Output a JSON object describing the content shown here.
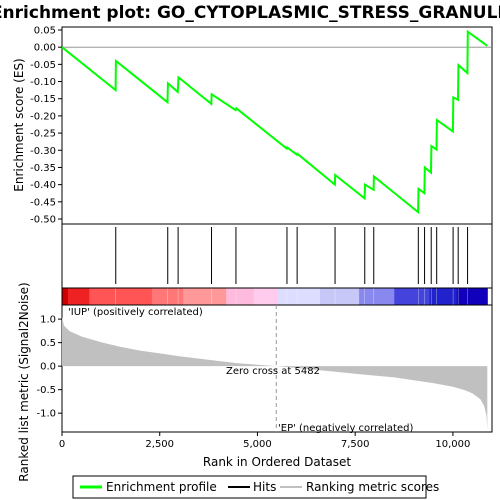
{
  "chart_data": {
    "type": "line",
    "title": "Enrichment plot: GO_CYTOPLASMIC_STRESS_GRANULE",
    "es_ylabel": "Enrichment score (ES)",
    "es_ylim": [
      -0.5,
      0.05
    ],
    "es_yticks": [
      0.05,
      0.0,
      -0.05,
      -0.1,
      -0.15,
      -0.2,
      -0.25,
      -0.3,
      -0.35,
      -0.4,
      -0.45,
      -0.5
    ],
    "es_ytick_labels": [
      "0.05",
      "0.00",
      "-0.05",
      "-0.10",
      "-0.15",
      "-0.20",
      "-0.25",
      "-0.30",
      "-0.35",
      "-0.40",
      "-0.45",
      "-0.50"
    ],
    "xlim": [
      0,
      11000
    ],
    "xticks": [
      0,
      2500,
      5000,
      7500,
      10000
    ],
    "xtick_labels": [
      "0",
      "2,500",
      "5,000",
      "7,500",
      "10,000"
    ],
    "xlabel": "Rank in Ordered Dataset",
    "n_genes": 10880,
    "enrichment_profile": {
      "name": "Enrichment profile",
      "color": "#00ff00",
      "points": [
        [
          0,
          0.0
        ],
        [
          1370,
          -0.125
        ],
        [
          1380,
          -0.04
        ],
        [
          2700,
          -0.16
        ],
        [
          2710,
          -0.105
        ],
        [
          2960,
          -0.13
        ],
        [
          2980,
          -0.088
        ],
        [
          3820,
          -0.165
        ],
        [
          3830,
          -0.137
        ],
        [
          4440,
          -0.183
        ],
        [
          4460,
          -0.178
        ],
        [
          5750,
          -0.295
        ],
        [
          5760,
          -0.292
        ],
        [
          6010,
          -0.313
        ],
        [
          6020,
          -0.31
        ],
        [
          6980,
          -0.4
        ],
        [
          6990,
          -0.372
        ],
        [
          7740,
          -0.44
        ],
        [
          7750,
          -0.4
        ],
        [
          7970,
          -0.415
        ],
        [
          7980,
          -0.376
        ],
        [
          9110,
          -0.48
        ],
        [
          9120,
          -0.412
        ],
        [
          9270,
          -0.425
        ],
        [
          9280,
          -0.35
        ],
        [
          9440,
          -0.365
        ],
        [
          9450,
          -0.288
        ],
        [
          9580,
          -0.298
        ],
        [
          9590,
          -0.212
        ],
        [
          10000,
          -0.245
        ],
        [
          10010,
          -0.146
        ],
        [
          10130,
          -0.153
        ],
        [
          10140,
          -0.052
        ],
        [
          10370,
          -0.075
        ],
        [
          10380,
          0.045
        ],
        [
          10880,
          0.004
        ]
      ]
    },
    "hits": {
      "name": "Hits",
      "color": "#000000",
      "ranks": [
        1375,
        2705,
        2970,
        3825,
        4450,
        5755,
        6015,
        6985,
        7745,
        7975,
        9115,
        9275,
        9445,
        9585,
        10005,
        10135,
        10375
      ]
    },
    "ranking_metric": {
      "name": "Ranking metric scores",
      "color": "#c0c0c0",
      "ylabel": "Ranked list metric (Signal2Noise)",
      "ylim": [
        -1.4,
        1.3
      ],
      "yticks": [
        1.0,
        0.5,
        0.0,
        -0.5,
        -1.0
      ],
      "ytick_labels": [
        "1.0",
        "0.5",
        "0.0",
        "-0.5",
        "-1.0"
      ],
      "profile": [
        [
          0,
          1.05
        ],
        [
          50,
          0.86
        ],
        [
          200,
          0.74
        ],
        [
          500,
          0.63
        ],
        [
          1000,
          0.51
        ],
        [
          1500,
          0.41
        ],
        [
          2000,
          0.33
        ],
        [
          2500,
          0.27
        ],
        [
          3000,
          0.21
        ],
        [
          3500,
          0.16
        ],
        [
          4000,
          0.11
        ],
        [
          4500,
          0.06
        ],
        [
          5000,
          0.03
        ],
        [
          5482,
          0.0
        ],
        [
          6000,
          -0.04
        ],
        [
          6500,
          -0.08
        ],
        [
          7000,
          -0.12
        ],
        [
          7500,
          -0.16
        ],
        [
          8000,
          -0.2
        ],
        [
          8500,
          -0.24
        ],
        [
          9000,
          -0.3
        ],
        [
          9500,
          -0.36
        ],
        [
          10000,
          -0.44
        ],
        [
          10300,
          -0.51
        ],
        [
          10500,
          -0.58
        ],
        [
          10700,
          -0.7
        ],
        [
          10800,
          -0.85
        ],
        [
          10860,
          -1.05
        ],
        [
          10880,
          -1.35
        ]
      ]
    },
    "zero_cross": 5482,
    "zero_cross_label": "Zero cross at 5482",
    "pos_label": "'IUP' (positively correlated)",
    "neg_label": "'EP' (negatively correlated)",
    "pos_label_color": "#ff0000",
    "neg_label_color": "#0000ff",
    "heatmap_colors": [
      {
        "from": 0,
        "to": 150,
        "color": "#cc0000"
      },
      {
        "from": 150,
        "to": 700,
        "color": "#ee2222"
      },
      {
        "from": 700,
        "to": 2300,
        "color": "#ff5555"
      },
      {
        "from": 2300,
        "to": 3100,
        "color": "#ff7777"
      },
      {
        "from": 3100,
        "to": 4200,
        "color": "#ff9999"
      },
      {
        "from": 4200,
        "to": 4900,
        "color": "#ffbbdd"
      },
      {
        "from": 4900,
        "to": 5500,
        "color": "#ffccee"
      },
      {
        "from": 5500,
        "to": 6600,
        "color": "#ddddff"
      },
      {
        "from": 6600,
        "to": 7600,
        "color": "#c8c8f8"
      },
      {
        "from": 7600,
        "to": 8500,
        "color": "#8888ee"
      },
      {
        "from": 8500,
        "to": 9400,
        "color": "#4444dd"
      },
      {
        "from": 9400,
        "to": 10100,
        "color": "#2222cc"
      },
      {
        "from": 10100,
        "to": 10880,
        "color": "#1100bb"
      }
    ],
    "legend": {
      "position": "bottom",
      "entries": [
        "Enrichment profile",
        "Hits",
        "Ranking metric scores"
      ]
    }
  }
}
